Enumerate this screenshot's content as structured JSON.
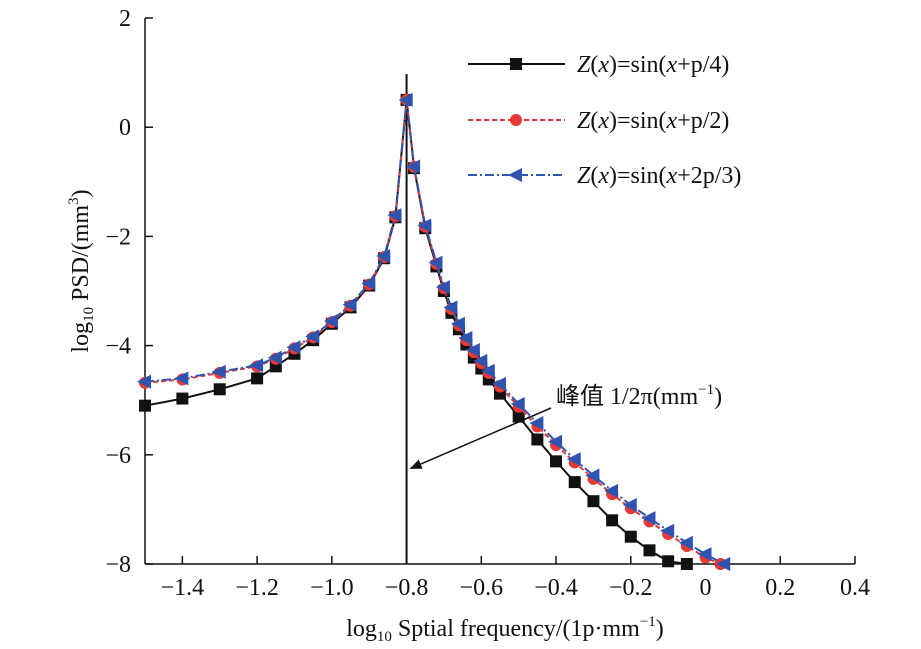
{
  "chart_data": {
    "type": "line",
    "title": "",
    "xlabel": {
      "base": "log",
      "sub": "10",
      "rest": " Sptial frequency/(1p·mm",
      "sup": "−1",
      "close": ")"
    },
    "ylabel": {
      "base": "log",
      "sub": "10",
      "rest": " PSD/(mm",
      "sup": "3",
      "close": ")"
    },
    "xlim": [
      -1.5,
      0.4
    ],
    "ylim": [
      -8,
      2
    ],
    "xticks": [
      -1.4,
      -1.2,
      -1.0,
      -0.8,
      -0.6,
      -0.4,
      -0.2,
      0,
      0.2,
      0.4
    ],
    "xtick_labels": [
      "−1.4",
      "−1.2",
      "−1.0",
      "−0.8",
      "−0.6",
      "−0.4",
      "−0.2",
      "0",
      "0.2",
      "0.4"
    ],
    "yticks": [
      2,
      0,
      -2,
      -4,
      -6,
      -8
    ],
    "ytick_labels": [
      "2",
      "0",
      "−2",
      "−4",
      "−6",
      "−8"
    ],
    "grid": false,
    "legend_position": "top-right",
    "peak_line_x": -0.8,
    "annotation": {
      "text": "峰值 1/2π(mm",
      "sup": "−1",
      "close": ")",
      "arrow_to": [
        -0.8,
        -6.25
      ]
    },
    "series": [
      {
        "legend": {
          "z": "Z",
          "p1": "(",
          "x1": "x",
          "p2": ")=sin(",
          "x2": "x",
          "rest": "+p/4)"
        },
        "color": "#111111",
        "marker": "square",
        "line_style": "solid",
        "x": [
          -1.5,
          -1.4,
          -1.3,
          -1.2,
          -1.15,
          -1.1,
          -1.05,
          -1.0,
          -0.95,
          -0.9,
          -0.86,
          -0.83,
          -0.8,
          -0.78,
          -0.75,
          -0.72,
          -0.7,
          -0.68,
          -0.66,
          -0.64,
          -0.62,
          -0.6,
          -0.58,
          -0.55,
          -0.5,
          -0.45,
          -0.4,
          -0.35,
          -0.3,
          -0.25,
          -0.2,
          -0.15,
          -0.1,
          -0.05
        ],
        "y": [
          -5.1,
          -4.97,
          -4.8,
          -4.6,
          -4.38,
          -4.15,
          -3.9,
          -3.6,
          -3.3,
          -2.9,
          -2.4,
          -1.65,
          0.5,
          -0.75,
          -1.85,
          -2.55,
          -3.0,
          -3.4,
          -3.7,
          -3.98,
          -4.22,
          -4.42,
          -4.62,
          -4.88,
          -5.3,
          -5.72,
          -6.12,
          -6.5,
          -6.85,
          -7.2,
          -7.5,
          -7.75,
          -7.95,
          -8.0
        ]
      },
      {
        "legend": {
          "z": "Z",
          "p1": "(",
          "x1": "x",
          "p2": ")=sin(",
          "x2": "x",
          "rest": "+p/2)"
        },
        "color": "#e53935",
        "marker": "circle",
        "line_style": "dashed",
        "x": [
          -1.5,
          -1.4,
          -1.3,
          -1.2,
          -1.15,
          -1.1,
          -1.05,
          -1.0,
          -0.95,
          -0.9,
          -0.86,
          -0.83,
          -0.8,
          -0.78,
          -0.75,
          -0.72,
          -0.7,
          -0.68,
          -0.66,
          -0.64,
          -0.62,
          -0.6,
          -0.58,
          -0.55,
          -0.5,
          -0.45,
          -0.4,
          -0.35,
          -0.3,
          -0.25,
          -0.2,
          -0.15,
          -0.1,
          -0.05,
          0,
          0.04
        ],
        "y": [
          -4.68,
          -4.62,
          -4.5,
          -4.38,
          -4.24,
          -4.05,
          -3.85,
          -3.57,
          -3.27,
          -2.88,
          -2.38,
          -1.63,
          0.5,
          -0.73,
          -1.82,
          -2.5,
          -2.95,
          -3.33,
          -3.63,
          -3.9,
          -4.12,
          -4.32,
          -4.5,
          -4.75,
          -5.12,
          -5.48,
          -5.82,
          -6.14,
          -6.44,
          -6.72,
          -6.98,
          -7.22,
          -7.45,
          -7.67,
          -7.88,
          -8.0
        ]
      },
      {
        "legend": {
          "z": "Z",
          "p1": "(",
          "x1": "x",
          "p2": ")=sin(",
          "x2": "x",
          "rest": "+2p/3)"
        },
        "color": "#2e54b0",
        "marker": "triangle-left",
        "line_style": "dashdot",
        "x": [
          -1.5,
          -1.4,
          -1.3,
          -1.2,
          -1.15,
          -1.1,
          -1.05,
          -1.0,
          -0.95,
          -0.9,
          -0.86,
          -0.83,
          -0.8,
          -0.78,
          -0.75,
          -0.72,
          -0.7,
          -0.68,
          -0.66,
          -0.64,
          -0.62,
          -0.6,
          -0.58,
          -0.55,
          -0.5,
          -0.45,
          -0.4,
          -0.35,
          -0.3,
          -0.25,
          -0.2,
          -0.15,
          -0.1,
          -0.05,
          0,
          0.05
        ],
        "y": [
          -4.66,
          -4.6,
          -4.48,
          -4.36,
          -4.22,
          -4.03,
          -3.83,
          -3.55,
          -3.25,
          -2.86,
          -2.36,
          -1.61,
          0.5,
          -0.72,
          -1.8,
          -2.48,
          -2.93,
          -3.3,
          -3.6,
          -3.86,
          -4.08,
          -4.28,
          -4.46,
          -4.7,
          -5.07,
          -5.42,
          -5.76,
          -6.08,
          -6.38,
          -6.66,
          -6.92,
          -7.16,
          -7.39,
          -7.61,
          -7.82,
          -8.0
        ]
      }
    ]
  }
}
